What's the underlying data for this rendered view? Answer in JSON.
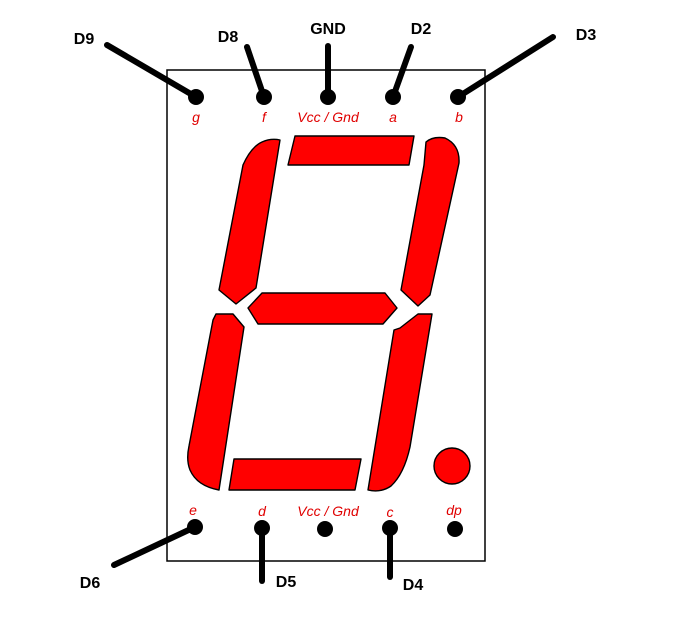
{
  "display": {
    "top_pins": [
      {
        "name": "g",
        "wire": "D9"
      },
      {
        "name": "f",
        "wire": "D8"
      },
      {
        "name": "Vcc / Gnd",
        "wire": "GND"
      },
      {
        "name": "a",
        "wire": "D2"
      },
      {
        "name": "b",
        "wire": "D3"
      }
    ],
    "bottom_pins": [
      {
        "name": "e",
        "wire": "D6"
      },
      {
        "name": "d",
        "wire": "D5"
      },
      {
        "name": "Vcc / Gnd",
        "wire": ""
      },
      {
        "name": "c",
        "wire": "D4"
      },
      {
        "name": "dp",
        "wire": ""
      }
    ],
    "segment_color": "#ff0000",
    "pin_label_color": "#e00000",
    "wire_color": "#000000"
  }
}
